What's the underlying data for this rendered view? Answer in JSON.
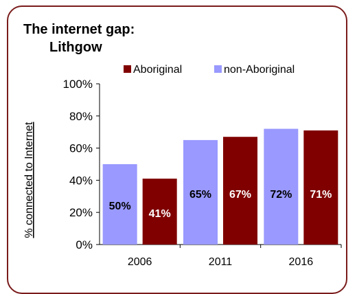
{
  "chart_data": {
    "type": "bar",
    "title_line1": "The internet gap:",
    "title_line2": "Lithgow",
    "ylabel": "% connected to Internet",
    "xlabel": "",
    "categories": [
      "2006",
      "2011",
      "2016"
    ],
    "series": [
      {
        "name": "non-Aboriginal",
        "values": [
          50,
          65,
          72
        ],
        "labels": [
          "50%",
          "65%",
          "72%"
        ],
        "color": "#9999ff",
        "label_color": "#000000"
      },
      {
        "name": "Aboriginal",
        "values": [
          41,
          67,
          71
        ],
        "labels": [
          "41%",
          "67%",
          "71%"
        ],
        "color": "#800000",
        "label_color": "#ffffff"
      }
    ],
    "legend_order": [
      "Aboriginal",
      "non-Aboriginal"
    ],
    "ylim": [
      0,
      100
    ],
    "yticks": [
      "0%",
      "20%",
      "40%",
      "60%",
      "80%",
      "100%"
    ],
    "ytick_values": [
      0,
      20,
      40,
      60,
      80,
      100
    ],
    "grid": false,
    "legend_position": "top"
  }
}
